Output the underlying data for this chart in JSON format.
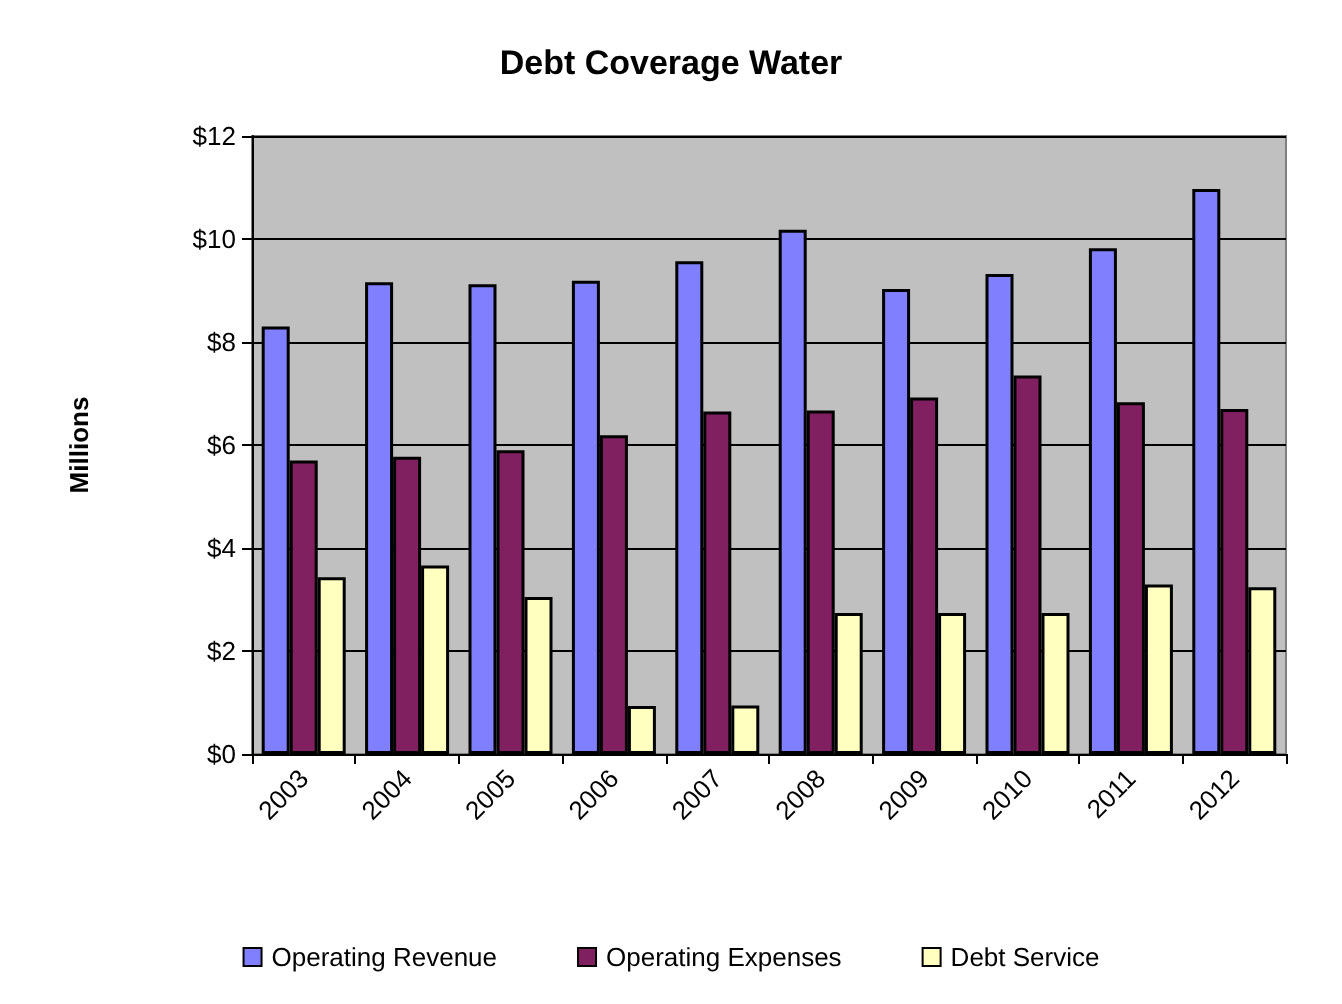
{
  "chart_data": {
    "type": "bar",
    "title": "Debt Coverage Water",
    "ylabel": "Millions",
    "categories": [
      "2003",
      "2004",
      "2005",
      "2006",
      "2007",
      "2008",
      "2009",
      "2010",
      "2011",
      "2012"
    ],
    "series": [
      {
        "name": "Operating Revenue",
        "color": "#8080ff",
        "values": [
          8.3,
          9.16,
          9.12,
          9.19,
          9.57,
          10.18,
          9.03,
          9.32,
          9.82,
          10.97
        ]
      },
      {
        "name": "Operating Expenses",
        "color": "#802060",
        "values": [
          5.7,
          5.77,
          5.9,
          6.19,
          6.65,
          6.67,
          6.92,
          7.35,
          6.83,
          6.7
        ]
      },
      {
        "name": "Debt Service",
        "color": "#ffffc0",
        "values": [
          3.43,
          3.66,
          3.05,
          0.93,
          0.94,
          2.74,
          2.74,
          2.74,
          3.29,
          3.24
        ]
      }
    ],
    "ylim": [
      0,
      12
    ],
    "yticks": [
      {
        "value": 0,
        "label": "$0"
      },
      {
        "value": 2,
        "label": "$2"
      },
      {
        "value": 4,
        "label": "$4"
      },
      {
        "value": 6,
        "label": "$6"
      },
      {
        "value": 8,
        "label": "$8"
      },
      {
        "value": 10,
        "label": "$10"
      },
      {
        "value": 12,
        "label": "$12"
      }
    ],
    "grid": "y",
    "legend": "bottom"
  }
}
